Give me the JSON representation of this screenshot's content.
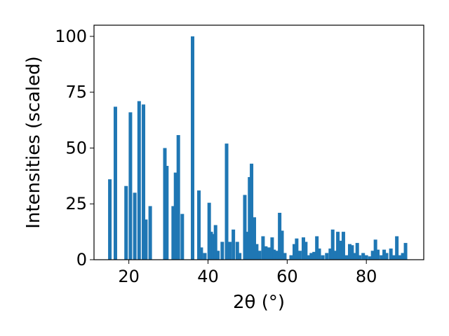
{
  "chart_data": {
    "type": "bar",
    "xlabel": "2θ (°)",
    "ylabel": "Intensities (scaled)",
    "xlim": [
      11.2,
      94.5
    ],
    "ylim": [
      0,
      105
    ],
    "grid": false,
    "bar_color": "#1f77b4",
    "xticks": [
      20,
      40,
      60,
      80
    ],
    "yticks": [
      0,
      25,
      50,
      75,
      100
    ],
    "x": [
      15.2,
      16.6,
      19.3,
      20.4,
      21.5,
      22.6,
      23.7,
      24.3,
      25.4,
      29.1,
      29.6,
      31.2,
      31.8,
      32.5,
      33.5,
      36.1,
      37.7,
      38.3,
      39.2,
      40.3,
      40.8,
      41.3,
      41.9,
      42.5,
      43.6,
      44.7,
      45.5,
      46.4,
      47.4,
      48.0,
      49.3,
      49.9,
      50.5,
      51.0,
      51.7,
      52.3,
      53.0,
      53.9,
      54.6,
      55.4,
      56.2,
      56.7,
      57.5,
      58.1,
      58.7,
      59.4,
      61.0,
      61.8,
      62.4,
      63.2,
      64.1,
      64.7,
      65.4,
      66.1,
      66.8,
      67.5,
      68.1,
      69.0,
      70.0,
      70.9,
      71.5,
      72.1,
      72.8,
      73.6,
      74.2,
      75.0,
      75.8,
      76.4,
      77.1,
      77.7,
      78.3,
      79.2,
      80.0,
      80.9,
      81.6,
      82.3,
      82.9,
      83.8,
      84.5,
      85.1,
      86.2,
      87.0,
      87.7,
      88.4,
      89.2,
      89.9
    ],
    "values": [
      36.0,
      68.5,
      33.0,
      66.0,
      30.0,
      71.0,
      69.5,
      18.0,
      24.0,
      50.0,
      42.0,
      24.0,
      39.0,
      55.8,
      20.5,
      100.0,
      31.0,
      5.5,
      3.0,
      25.5,
      12.5,
      11.5,
      15.5,
      4.0,
      8.0,
      52.0,
      8.0,
      13.5,
      8.0,
      3.0,
      29.0,
      12.5,
      37.0,
      43.0,
      19.0,
      7.0,
      4.0,
      10.5,
      6.0,
      5.5,
      10.0,
      4.5,
      4.0,
      21.0,
      13.0,
      3.0,
      2.0,
      7.0,
      9.5,
      4.0,
      10.0,
      8.0,
      2.0,
      3.0,
      3.5,
      10.5,
      5.0,
      2.0,
      3.0,
      5.0,
      13.5,
      4.0,
      12.5,
      8.5,
      12.5,
      2.0,
      7.0,
      6.5,
      3.0,
      7.5,
      2.0,
      3.0,
      2.0,
      1.5,
      4.0,
      9.0,
      4.5,
      2.0,
      4.5,
      3.0,
      5.0,
      2.0,
      10.5,
      2.0,
      3.0,
      7.5
    ]
  }
}
